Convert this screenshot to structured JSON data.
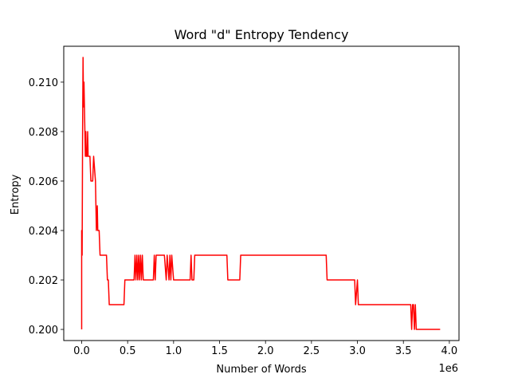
{
  "chart_data": {
    "type": "line",
    "title": "Word \"d\" Entropy Tendency",
    "xlabel": "Number of Words",
    "ylabel": "Entropy",
    "x_offset_label": "1e6",
    "xlim": [
      -0.195,
      4.105
    ],
    "ylim": [
      0.19955,
      0.21145
    ],
    "x_ticks": [
      0.0,
      0.5,
      1.0,
      1.5,
      2.0,
      2.5,
      3.0,
      3.5,
      4.0
    ],
    "x_tick_labels": [
      "0.0",
      "0.5",
      "1.0",
      "1.5",
      "2.0",
      "2.5",
      "3.0",
      "3.5",
      "4.0"
    ],
    "y_ticks": [
      0.2,
      0.202,
      0.204,
      0.206,
      0.208,
      0.21
    ],
    "y_tick_labels": [
      "0.200",
      "0.202",
      "0.204",
      "0.206",
      "0.208",
      "0.210"
    ],
    "grid": false,
    "series": [
      {
        "color": "#ff0000",
        "x": [
          0.0,
          0.0,
          0.005,
          0.01,
          0.015,
          0.02,
          0.025,
          0.03,
          0.035,
          0.04,
          0.045,
          0.05,
          0.06,
          0.065,
          0.07,
          0.08,
          0.09,
          0.1,
          0.11,
          0.12,
          0.13,
          0.15,
          0.155,
          0.16,
          0.17,
          0.175,
          0.18,
          0.19,
          0.2,
          0.205,
          0.22,
          0.27,
          0.28,
          0.29,
          0.3,
          0.46,
          0.47,
          0.57,
          0.58,
          0.59,
          0.6,
          0.61,
          0.62,
          0.63,
          0.64,
          0.65,
          0.66,
          0.67,
          0.68,
          0.7,
          0.78,
          0.79,
          0.8,
          0.81,
          0.83,
          0.86,
          0.9,
          0.92,
          0.93,
          0.95,
          0.96,
          0.97,
          0.98,
          1.0,
          1.18,
          1.19,
          1.2,
          1.22,
          1.23,
          1.58,
          1.59,
          1.72,
          1.73,
          2.66,
          2.67,
          2.97,
          2.98,
          3.0,
          3.01,
          3.02,
          3.58,
          3.59,
          3.6,
          3.61,
          3.62,
          3.63,
          3.64,
          3.9
        ],
        "y": [
          0.2,
          0.204,
          0.203,
          0.208,
          0.211,
          0.209,
          0.21,
          0.209,
          0.208,
          0.207,
          0.208,
          0.207,
          0.207,
          0.208,
          0.207,
          0.207,
          0.207,
          0.206,
          0.206,
          0.206,
          0.207,
          0.206,
          0.205,
          0.204,
          0.205,
          0.204,
          0.204,
          0.204,
          0.203,
          0.203,
          0.203,
          0.203,
          0.202,
          0.202,
          0.201,
          0.201,
          0.202,
          0.202,
          0.203,
          0.202,
          0.203,
          0.202,
          0.203,
          0.202,
          0.203,
          0.202,
          0.203,
          0.202,
          0.202,
          0.202,
          0.202,
          0.203,
          0.202,
          0.203,
          0.203,
          0.203,
          0.203,
          0.202,
          0.203,
          0.202,
          0.203,
          0.202,
          0.203,
          0.202,
          0.202,
          0.203,
          0.202,
          0.202,
          0.203,
          0.203,
          0.202,
          0.202,
          0.203,
          0.203,
          0.202,
          0.202,
          0.201,
          0.202,
          0.201,
          0.201,
          0.201,
          0.2,
          0.201,
          0.201,
          0.2,
          0.201,
          0.2,
          0.2
        ]
      }
    ]
  }
}
